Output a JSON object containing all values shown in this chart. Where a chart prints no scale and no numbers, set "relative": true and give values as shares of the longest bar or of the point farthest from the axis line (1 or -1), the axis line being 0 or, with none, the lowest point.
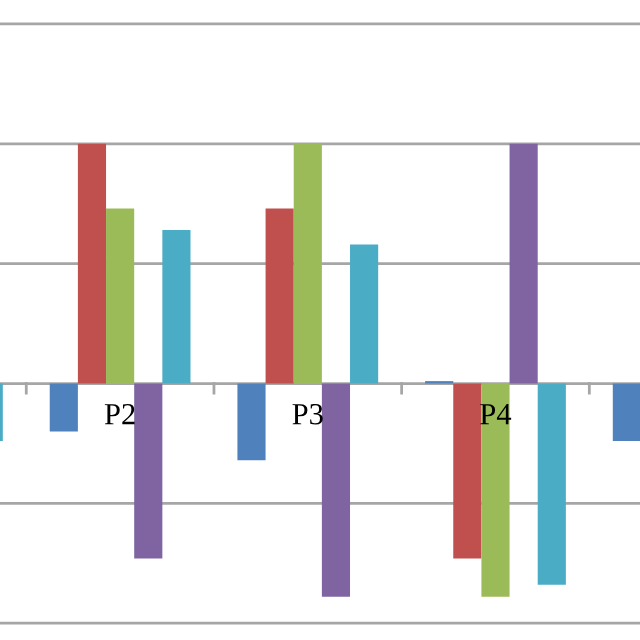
{
  "chart_data": {
    "type": "bar",
    "relative": true,
    "grid": "y",
    "legend": false,
    "categories": [
      null,
      "P2",
      "P3",
      "P4",
      null
    ],
    "series": [
      {
        "color": "#4f81bd",
        "values": [
          null,
          -0.2,
          -0.32,
          0.01,
          -0.24
        ]
      },
      {
        "color": "#c0504d",
        "values": [
          null,
          1,
          0.73,
          -0.73,
          null
        ]
      },
      {
        "color": "#9bbb59",
        "values": [
          null,
          0.73,
          1,
          -0.89,
          null
        ]
      },
      {
        "color": "#8064a2",
        "values": [
          null,
          -0.73,
          -0.89,
          1,
          null
        ]
      },
      {
        "color": "#4bacc6",
        "values": [
          -0.24,
          0.64,
          0.58,
          -0.84,
          null
        ]
      }
    ]
  }
}
